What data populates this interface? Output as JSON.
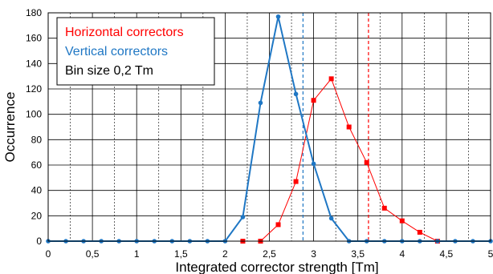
{
  "chart_data": {
    "type": "line",
    "title": "",
    "xlabel": "Integrated corrector strength [Tm]",
    "ylabel": "Occurrence",
    "xlim": [
      0,
      5
    ],
    "ylim": [
      0,
      180
    ],
    "x_ticks": [
      0,
      0.5,
      1,
      1.5,
      2,
      2.5,
      3,
      3.5,
      4,
      4.5,
      5
    ],
    "x_tick_labels": [
      "0",
      "0,5",
      "1",
      "1,5",
      "2",
      "2,5",
      "3",
      "3,5",
      "4",
      "4,5",
      "5"
    ],
    "y_ticks": [
      0,
      20,
      40,
      60,
      80,
      100,
      120,
      140,
      160,
      180
    ],
    "x_minor_grid_step": 0.25,
    "grid": true,
    "legend_location": "top-left",
    "annotations": [
      "Bin size 0,2 Tm"
    ],
    "series": [
      {
        "name": "Horizontal correctors",
        "color": "#ff0000",
        "marker": "square",
        "x": [
          2.2,
          2.4,
          2.6,
          2.8,
          3.0,
          3.2,
          3.4,
          3.6,
          3.8,
          4.0,
          4.2,
          4.4
        ],
        "y": [
          0,
          0,
          13,
          47,
          111,
          128,
          90,
          62,
          26,
          16,
          7,
          0
        ]
      },
      {
        "name": "Vertical correctors",
        "color": "#1f77c4",
        "marker": "circle",
        "x": [
          0,
          0.2,
          0.4,
          0.6,
          0.8,
          1.0,
          1.2,
          1.4,
          1.6,
          1.8,
          2.0,
          2.2,
          2.4,
          2.6,
          2.8,
          3.0,
          3.2,
          3.4,
          3.6,
          3.8,
          4.0,
          4.2,
          4.4,
          4.6,
          4.8,
          5.0
        ],
        "y": [
          0,
          0,
          0,
          0,
          0,
          0,
          0,
          0,
          0,
          0,
          0,
          19,
          109,
          177,
          116,
          61,
          18,
          0,
          0,
          0,
          0,
          0,
          0,
          0,
          0,
          0
        ]
      }
    ],
    "reference_lines": [
      {
        "x": 2.88,
        "color": "#1f77c4",
        "style": "dashed"
      },
      {
        "x": 3.62,
        "color": "#ff0000",
        "style": "dashed"
      }
    ]
  }
}
